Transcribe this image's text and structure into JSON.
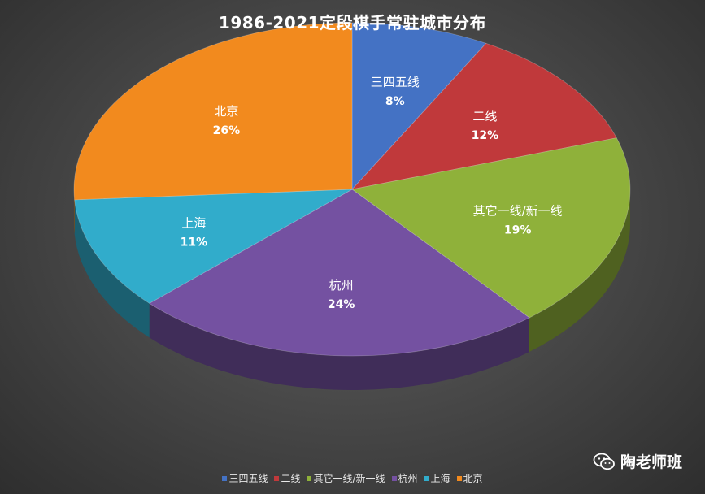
{
  "chart_data": {
    "type": "pie",
    "title": "1986-2021定段棋手常驻城市分布",
    "slices": [
      {
        "label": "三四五线",
        "value": 8,
        "display": "8%",
        "color": "#4472C4"
      },
      {
        "label": "二线",
        "value": 12,
        "display": "12%",
        "color": "#C0393B"
      },
      {
        "label": "其它一线/新一线",
        "value": 19,
        "display": "19%",
        "color": "#8FB13A"
      },
      {
        "label": "杭州",
        "value": 24,
        "display": "24%",
        "color": "#7451A1"
      },
      {
        "label": "上海",
        "value": 11,
        "display": "11%",
        "color": "#31ACCB"
      },
      {
        "label": "北京",
        "value": 26,
        "display": "26%",
        "color": "#F28A1E"
      }
    ],
    "legend_position": "bottom"
  },
  "watermark": {
    "text": "陶老师班",
    "icon": "wechat-icon"
  }
}
